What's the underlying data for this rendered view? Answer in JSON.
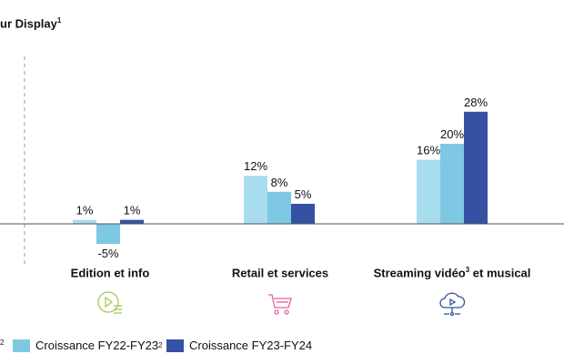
{
  "title": {
    "text": "ur Display",
    "sup": "1"
  },
  "legend": {
    "cut_sup": "2",
    "items": [
      {
        "label": "Croissance FY22-FY23",
        "sup": "2",
        "color": "#7ec8e3"
      },
      {
        "label": "Croissance FY23-FY24",
        "sup": "",
        "color": "#3451a3"
      }
    ]
  },
  "categories": [
    {
      "pre": "Edition et info",
      "sup": "",
      "post": "",
      "color": "#a7c957",
      "icon": "play-document-icon"
    },
    {
      "pre": "Retail et services",
      "sup": "",
      "post": "",
      "color": "#e0609a",
      "icon": "shopping-cart-icon"
    },
    {
      "pre": "Streaming vidéo",
      "sup": "3",
      "post": " et musical",
      "color": "#3451a3",
      "icon": "cloud-play-icon"
    }
  ],
  "chart_data": {
    "type": "bar",
    "categories": [
      "Edition et info",
      "Retail et services",
      "Streaming vidéo et musical"
    ],
    "series": [
      {
        "values": [
          1,
          12,
          16
        ],
        "labels": [
          "1%",
          "12%",
          "16%"
        ],
        "color": "#a8dcef"
      },
      {
        "name": "Croissance FY22-FY23",
        "values": [
          -5,
          8,
          20
        ],
        "labels": [
          "-5%",
          "8%",
          "20%"
        ],
        "color": "#7ec8e3"
      },
      {
        "name": "Croissance FY23-FY24",
        "values": [
          1,
          5,
          28
        ],
        "labels": [
          "1%",
          "5%",
          "28%"
        ],
        "color": "#3451a3"
      }
    ]
  }
}
